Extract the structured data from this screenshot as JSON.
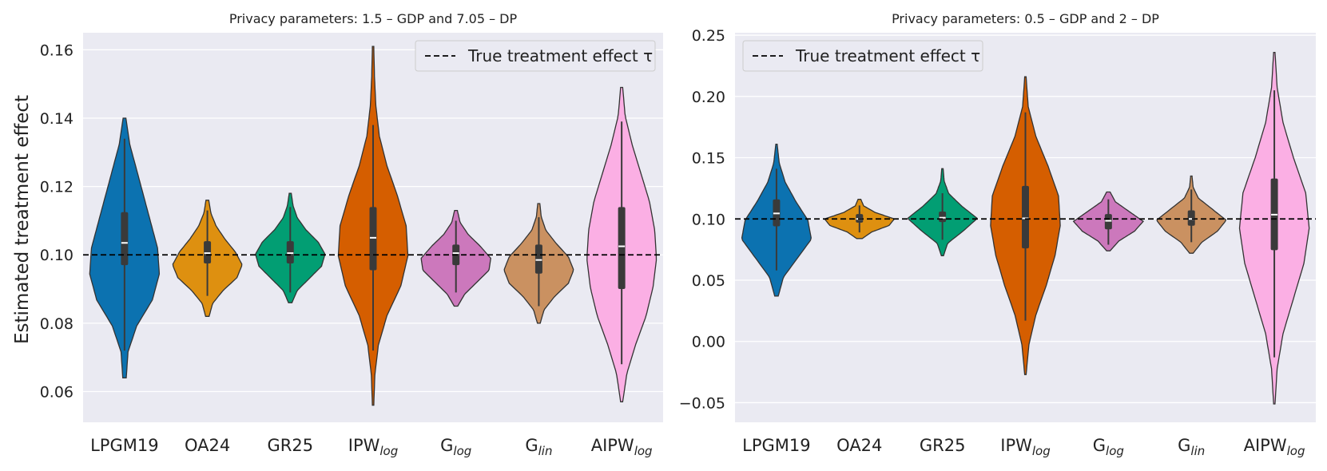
{
  "colors": {
    "panel_bg": "#eaeaf2",
    "grid": "#ffffff",
    "outline": "#333333",
    "legend_bg": "#eaeaf2",
    "legend_border": "#cccccc"
  },
  "legend_label": "True treatment effect τ",
  "chart_data": [
    {
      "type": "violin",
      "title": "Privacy parameters: 1.5 – GDP and 7.05 – DP",
      "ylabel": "Estimated treatment effect",
      "xlabel": "",
      "ylim": [
        0.051,
        0.165
      ],
      "yticks": [
        0.06,
        0.08,
        0.1,
        0.12,
        0.14,
        0.16
      ],
      "ytick_labels": [
        "0.06",
        "0.08",
        "0.10",
        "0.12",
        "0.14",
        "0.16"
      ],
      "legend_position": "top-right",
      "true_effect": 0.1,
      "categories": [
        {
          "base": "LPGM19",
          "sub": "",
          "color": "#0c72b0",
          "min": 0.064,
          "max": 0.14,
          "q1": 0.097,
          "median": 0.1035,
          "q3": 0.1125,
          "wlo": 0.072,
          "whi": 0.134,
          "density": [
            0.05,
            0.1,
            0.35,
            0.8,
            1.0,
            0.95,
            0.75,
            0.55,
            0.35,
            0.15,
            0.04
          ]
        },
        {
          "base": "OA24",
          "sub": "",
          "color": "#de9010",
          "min": 0.082,
          "max": 0.116,
          "q1": 0.0975,
          "median": 0.1005,
          "q3": 0.104,
          "wlo": 0.088,
          "whi": 0.113,
          "density": [
            0.05,
            0.15,
            0.45,
            0.85,
            1.0,
            0.8,
            0.5,
            0.25,
            0.1,
            0.04
          ]
        },
        {
          "base": "GR25",
          "sub": "",
          "color": "#029e73",
          "min": 0.086,
          "max": 0.118,
          "q1": 0.0975,
          "median": 0.1005,
          "q3": 0.104,
          "wlo": 0.089,
          "whi": 0.114,
          "density": [
            0.05,
            0.2,
            0.55,
            0.9,
            1.0,
            0.8,
            0.45,
            0.2,
            0.08,
            0.03
          ]
        },
        {
          "base": "IPW",
          "sub": "log",
          "color": "#d55e00",
          "min": 0.056,
          "max": 0.161,
          "q1": 0.0955,
          "median": 0.105,
          "q3": 0.114,
          "wlo": 0.072,
          "whi": 0.138,
          "density": [
            0.02,
            0.05,
            0.15,
            0.4,
            0.8,
            1.0,
            0.95,
            0.7,
            0.4,
            0.18,
            0.08,
            0.04,
            0.02
          ]
        },
        {
          "base": "G",
          "sub": "log",
          "color": "#cc78bc",
          "min": 0.085,
          "max": 0.113,
          "q1": 0.097,
          "median": 0.1005,
          "q3": 0.103,
          "wlo": 0.089,
          "whi": 0.11,
          "density": [
            0.05,
            0.25,
            0.6,
            0.95,
            1.0,
            0.7,
            0.35,
            0.12,
            0.04
          ]
        },
        {
          "base": "G",
          "sub": "lin",
          "color": "#ca9161",
          "min": 0.08,
          "max": 0.115,
          "q1": 0.0945,
          "median": 0.0985,
          "q3": 0.103,
          "wlo": 0.085,
          "whi": 0.111,
          "density": [
            0.04,
            0.15,
            0.45,
            0.85,
            1.0,
            0.85,
            0.5,
            0.2,
            0.07,
            0.03
          ]
        },
        {
          "base": "AIPW",
          "sub": "log",
          "color": "#fbafe4",
          "min": 0.057,
          "max": 0.149,
          "q1": 0.09,
          "median": 0.1025,
          "q3": 0.114,
          "wlo": 0.068,
          "whi": 0.139,
          "density": [
            0.03,
            0.15,
            0.4,
            0.7,
            0.9,
            1.0,
            0.95,
            0.8,
            0.55,
            0.3,
            0.1,
            0.03
          ]
        }
      ]
    },
    {
      "type": "violin",
      "title": "Privacy parameters: 0.5 – GDP and 2 – DP",
      "ylabel": "",
      "xlabel": "",
      "ylim": [
        -0.066,
        0.252
      ],
      "yticks": [
        -0.05,
        0.0,
        0.05,
        0.1,
        0.15,
        0.2,
        0.25
      ],
      "ytick_labels": [
        "−0.05",
        "0.00",
        "0.05",
        "0.10",
        "0.15",
        "0.20",
        "0.25"
      ],
      "legend_position": "top-left",
      "true_effect": 0.1,
      "categories": [
        {
          "base": "LPGM19",
          "sub": "",
          "color": "#0c72b0",
          "min": 0.037,
          "max": 0.161,
          "q1": 0.094,
          "median": 0.1045,
          "q3": 0.116,
          "wlo": 0.058,
          "whi": 0.141,
          "density": [
            0.05,
            0.2,
            0.6,
            1.0,
            0.9,
            0.55,
            0.25,
            0.08,
            0.02
          ]
        },
        {
          "base": "OA24",
          "sub": "",
          "color": "#de9010",
          "min": 0.084,
          "max": 0.116,
          "q1": 0.097,
          "median": 0.1,
          "q3": 0.104,
          "wlo": 0.089,
          "whi": 0.111,
          "density": [
            0.08,
            0.35,
            0.85,
            1.0,
            0.45,
            0.12,
            0.04
          ]
        },
        {
          "base": "GR25",
          "sub": "",
          "color": "#029e73",
          "min": 0.07,
          "max": 0.141,
          "q1": 0.0975,
          "median": 0.101,
          "q3": 0.106,
          "wlo": 0.083,
          "whi": 0.121,
          "density": [
            0.03,
            0.15,
            0.6,
            1.0,
            0.55,
            0.18,
            0.05,
            0.02
          ]
        },
        {
          "base": "IPW",
          "sub": "log",
          "color": "#d55e00",
          "min": -0.027,
          "max": 0.216,
          "q1": 0.076,
          "median": 0.1005,
          "q3": 0.127,
          "wlo": 0.017,
          "whi": 0.187,
          "density": [
            0.02,
            0.1,
            0.3,
            0.6,
            0.85,
            1.0,
            0.95,
            0.65,
            0.3,
            0.08,
            0.02
          ]
        },
        {
          "base": "G",
          "sub": "log",
          "color": "#cc78bc",
          "min": 0.074,
          "max": 0.122,
          "q1": 0.0915,
          "median": 0.0985,
          "q3": 0.104,
          "wlo": 0.079,
          "whi": 0.116,
          "density": [
            0.05,
            0.3,
            0.75,
            1.0,
            0.6,
            0.2,
            0.05
          ]
        },
        {
          "base": "G",
          "sub": "lin",
          "color": "#ca9161",
          "min": 0.072,
          "max": 0.135,
          "q1": 0.0945,
          "median": 0.1,
          "q3": 0.107,
          "wlo": 0.081,
          "whi": 0.124,
          "density": [
            0.05,
            0.3,
            0.75,
            1.0,
            0.6,
            0.2,
            0.05,
            0.02
          ]
        },
        {
          "base": "AIPW",
          "sub": "log",
          "color": "#fbafe4",
          "min": -0.051,
          "max": 0.236,
          "q1": 0.0745,
          "median": 0.1035,
          "q3": 0.133,
          "wlo": -0.013,
          "whi": 0.205,
          "density": [
            0.02,
            0.08,
            0.25,
            0.55,
            0.85,
            1.0,
            0.9,
            0.55,
            0.25,
            0.08,
            0.02
          ]
        }
      ]
    }
  ]
}
